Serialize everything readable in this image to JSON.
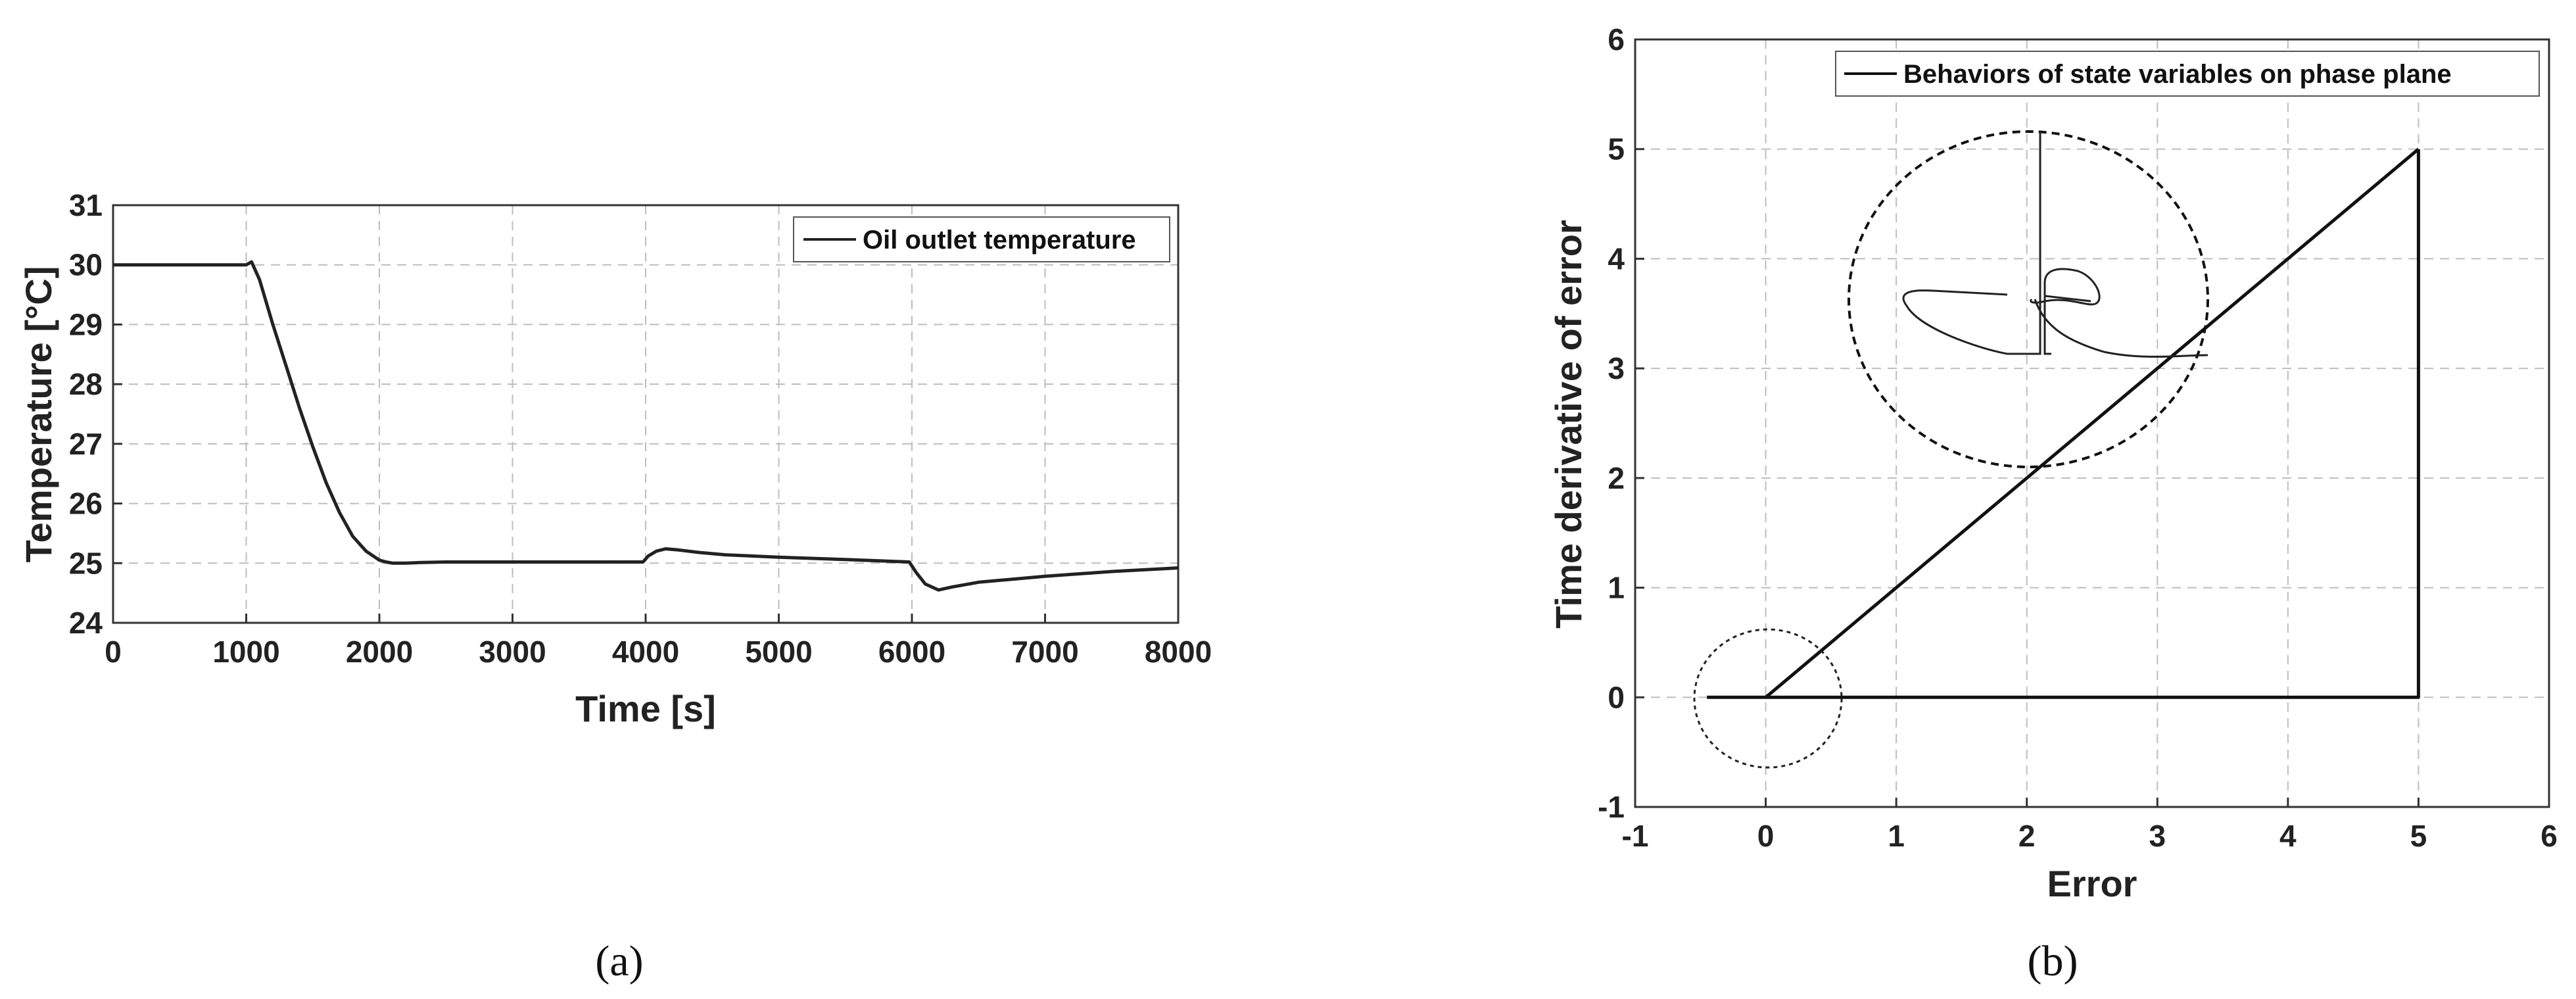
{
  "chart_data": [
    {
      "type": "line",
      "panel_label": "(a)",
      "xlabel": "Time [s]",
      "ylabel": "Temperature [°C]",
      "xlim": [
        0,
        8000
      ],
      "ylim": [
        24,
        31
      ],
      "xticks": [
        0,
        1000,
        2000,
        3000,
        4000,
        5000,
        6000,
        7000,
        8000
      ],
      "yticks": [
        24,
        25,
        26,
        27,
        28,
        29,
        30,
        31
      ],
      "grid": true,
      "legend_position": "top-right",
      "series": [
        {
          "name": "Oil outlet temperature",
          "color": "#222222",
          "x": [
            0,
            1000,
            1040,
            1100,
            1200,
            1300,
            1400,
            1500,
            1600,
            1700,
            1800,
            1900,
            2000,
            2050,
            2100,
            2150,
            2200,
            2300,
            2500,
            3000,
            3500,
            3980,
            4020,
            4080,
            4150,
            4250,
            4400,
            4600,
            5000,
            5500,
            5980,
            6030,
            6100,
            6200,
            6300,
            6500,
            7000,
            7500,
            8000
          ],
          "y": [
            30.0,
            30.0,
            30.05,
            29.75,
            29.0,
            28.3,
            27.6,
            26.95,
            26.35,
            25.85,
            25.45,
            25.2,
            25.05,
            25.02,
            25.0,
            25.0,
            25.0,
            25.01,
            25.02,
            25.02,
            25.02,
            25.02,
            25.12,
            25.2,
            25.24,
            25.22,
            25.18,
            25.14,
            25.1,
            25.06,
            25.02,
            24.85,
            24.65,
            24.55,
            24.6,
            24.68,
            24.78,
            24.86,
            24.92
          ]
        }
      ]
    },
    {
      "type": "line",
      "panel_label": "(b)",
      "xlabel": "Error",
      "ylabel": "Time derivative of error",
      "xlim": [
        -1,
        6
      ],
      "ylim": [
        -1,
        6
      ],
      "xticks": [
        -1,
        0,
        1,
        2,
        3,
        4,
        5,
        6
      ],
      "yticks": [
        -1,
        0,
        1,
        2,
        3,
        4,
        5,
        6
      ],
      "grid": true,
      "legend_position": "top-right",
      "series": [
        {
          "name": "Behaviors of state variables on phase plane",
          "color": "#111111",
          "x": [
            5,
            5,
            4.0,
            3.0,
            2.0,
            1.0,
            0.5,
            0.0,
            -0.45
          ],
          "y": [
            5,
            0,
            0,
            0,
            0,
            0,
            0,
            0,
            0
          ]
        },
        {
          "color": "#111111",
          "x": [
            0,
            5
          ],
          "y": [
            0,
            5
          ]
        }
      ],
      "annotations": [
        {
          "type": "zoom-circle-small",
          "center": [
            0,
            0
          ]
        },
        {
          "type": "zoom-circle-large",
          "note": "magnified view of trajectory near origin"
        }
      ]
    }
  ]
}
